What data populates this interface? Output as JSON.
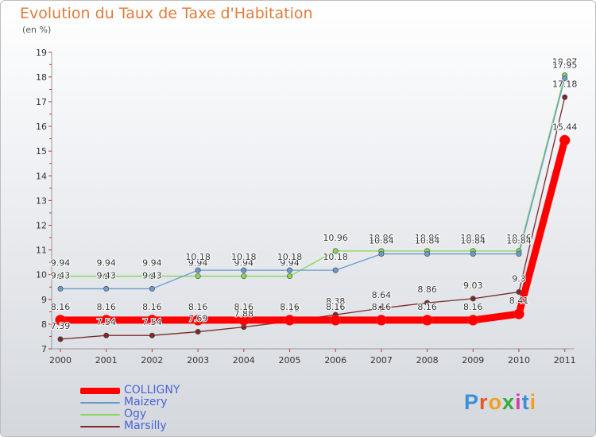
{
  "chart_data": {
    "type": "line",
    "title": "Evolution du Taux de Taxe d'Habitation",
    "subtitle": "(en %)",
    "xlabel": "",
    "ylabel": "",
    "categories": [
      "2000",
      "2001",
      "2002",
      "2003",
      "2004",
      "2005",
      "2006",
      "2007",
      "2008",
      "2009",
      "2010",
      "2011"
    ],
    "ylim": [
      7,
      19
    ],
    "yticks": [
      7,
      8,
      9,
      10,
      11,
      12,
      13,
      14,
      15,
      16,
      17,
      18,
      19
    ],
    "grid": false,
    "legend_position": "bottom-left",
    "series": [
      {
        "name": "Marsilly",
        "color": "#7a2a2a",
        "values": [
          7.39,
          7.54,
          7.54,
          7.69,
          7.88,
          8.11,
          8.38,
          8.64,
          8.86,
          9.03,
          9.3,
          17.18
        ],
        "labels": [
          "7.39",
          "7.54",
          "7.54",
          "7.69",
          "7.88",
          "8.11",
          "8.38",
          "8.64",
          "8.86",
          "9.03",
          "9.3",
          "17.18"
        ]
      },
      {
        "name": "Ogy",
        "color": "#86d65a",
        "values": [
          9.94,
          9.94,
          9.94,
          9.94,
          9.94,
          9.94,
          10.96,
          10.96,
          10.96,
          10.96,
          10.96,
          18.07
        ],
        "labels": [
          "9.94",
          "9.94",
          "9.94",
          "9.94",
          "9.94",
          "9.94",
          "10.96",
          "10.96",
          "10.96",
          "10.96",
          "10.96",
          "18.07"
        ]
      },
      {
        "name": "Maizery",
        "color": "#6b9acc",
        "values": [
          9.43,
          9.43,
          9.43,
          10.18,
          10.18,
          10.18,
          10.18,
          10.84,
          10.84,
          10.84,
          10.84,
          17.95
        ],
        "labels": [
          "9.43",
          "9.43",
          "9.43",
          "10.18",
          "10.18",
          "10.18",
          "10.18",
          "10.84",
          "10.84",
          "10.84",
          "10.84",
          "17.95"
        ]
      },
      {
        "name": "COLLIGNY",
        "color": "#ff0000",
        "values": [
          8.16,
          8.16,
          8.16,
          8.16,
          8.16,
          8.16,
          8.16,
          8.16,
          8.16,
          8.16,
          8.41,
          15.44
        ],
        "labels": [
          "8.16",
          "8.16",
          "8.16",
          "8.16",
          "8.16",
          "8.16",
          "8.16",
          "8.16",
          "8.16",
          "8.16",
          "8.41",
          "15.44"
        ]
      }
    ]
  },
  "legend": {
    "items": [
      {
        "label": "COLLIGNY",
        "color": "#ff0000"
      },
      {
        "label": "Maizery",
        "color": "#6b9acc"
      },
      {
        "label": "Ogy",
        "color": "#86d65a"
      },
      {
        "label": "Marsilly",
        "color": "#7a2a2a"
      }
    ]
  },
  "brand": {
    "text": "Proxiti",
    "letter_colors": [
      "#3a8fd6",
      "#e05a2a",
      "#f0a020",
      "#3aa83a",
      "#d63ab0",
      "#3a8fd6",
      "#f0a020"
    ]
  }
}
